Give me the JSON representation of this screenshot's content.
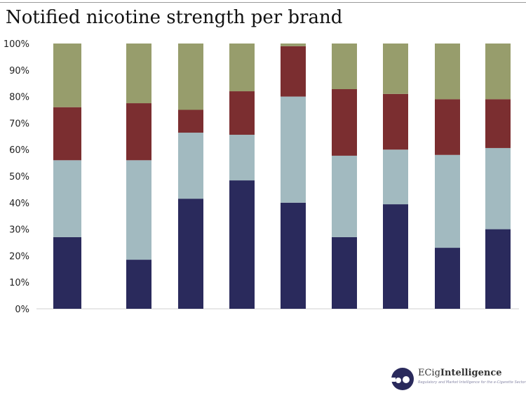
{
  "title": "Notified nicotine strength per brand",
  "chart_data": {
    "type": "bar",
    "stacked": true,
    "percent": true,
    "title": "Notified nicotine strength per brand",
    "categories": [
      "",
      "",
      "",
      "",
      "",
      "",
      "",
      "",
      ""
    ],
    "yticks": [
      "0%",
      "10%",
      "20%",
      "30%",
      "40%",
      "50%",
      "60%",
      "70%",
      "80%",
      "90%",
      "100%"
    ],
    "ylim": [
      0,
      100
    ],
    "grid": false,
    "series": [
      {
        "color": "#2a2a5c",
        "values": [
          27,
          18.5,
          41.5,
          48.4,
          40,
          27,
          39.4,
          23,
          30
        ]
      },
      {
        "color": "#a2bac0",
        "values": [
          29,
          37.5,
          24.9,
          17.2,
          40,
          30.7,
          20.6,
          35,
          30.6
        ]
      },
      {
        "color": "#7b2e30",
        "values": [
          20,
          21.5,
          8.6,
          16.4,
          19,
          25.1,
          21,
          21,
          18.4
        ]
      },
      {
        "color": "#979d6c",
        "values": [
          24,
          22.5,
          25,
          18,
          1,
          17.2,
          19,
          21,
          21
        ]
      }
    ]
  },
  "logo": {
    "brand_prefix": "ECig",
    "brand_suffix": "Intelligence",
    "tagline": "Regulatory and Market Intelligence for the e-Cigarette Sector"
  }
}
